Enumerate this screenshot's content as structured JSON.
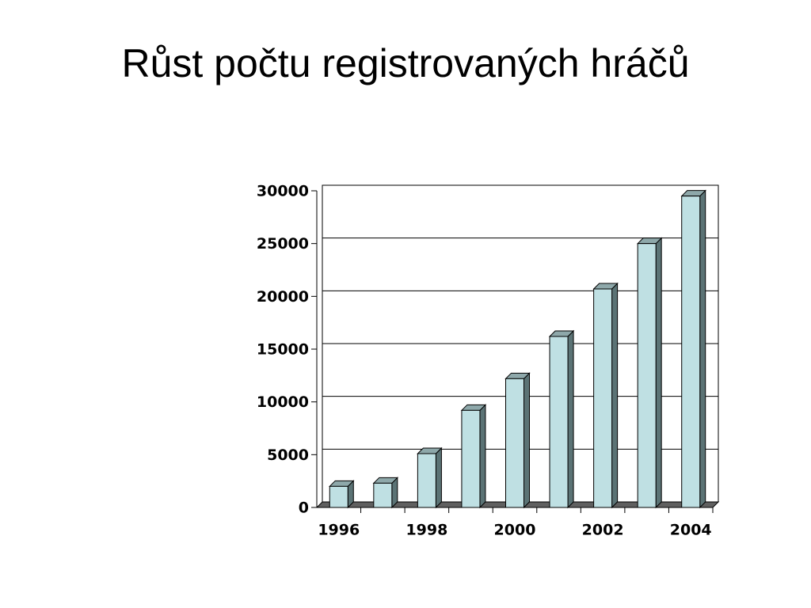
{
  "chart_data": {
    "type": "bar3d",
    "title": "Růst počtu registrovaných hráčů",
    "categories": [
      "1996",
      null,
      "1998",
      null,
      "2000",
      null,
      "2002",
      null,
      "2004"
    ],
    "values": [
      2000,
      2300,
      5100,
      9200,
      12200,
      16200,
      20700,
      25000,
      29500
    ],
    "color": "#bfe0e3",
    "ylim": [
      0,
      30000
    ],
    "yticks": [
      0,
      5000,
      10000,
      15000,
      20000,
      25000,
      30000
    ],
    "grid": true
  }
}
